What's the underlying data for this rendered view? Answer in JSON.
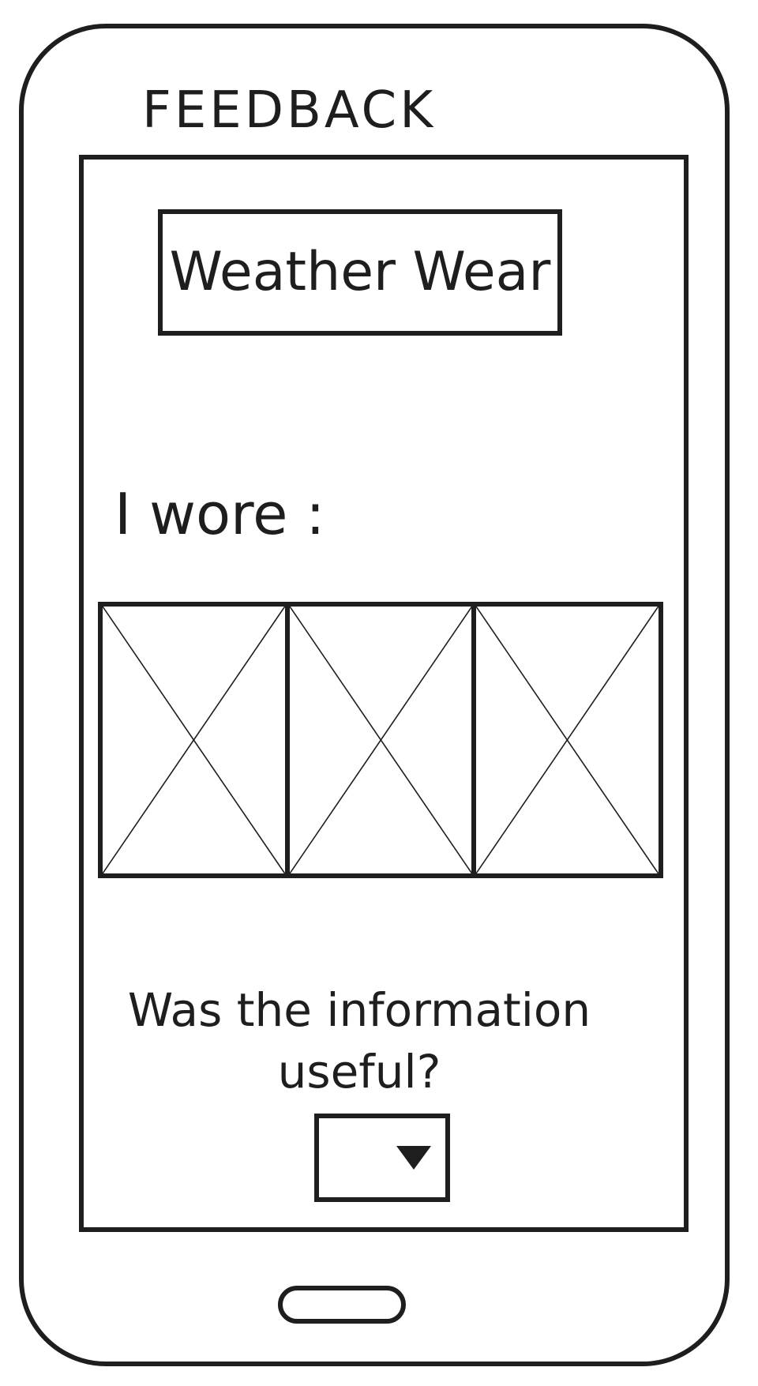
{
  "screen": {
    "title": "FEEDBACK"
  },
  "banner": {
    "app_name": "Weather Wear"
  },
  "outfit": {
    "label": "I wore :",
    "slots": [
      {
        "placeholder": "image-placeholder"
      },
      {
        "placeholder": "image-placeholder"
      },
      {
        "placeholder": "image-placeholder"
      }
    ]
  },
  "feedback": {
    "question": "Was the information useful?",
    "select_value": "",
    "select_icon": "chevron-down-icon"
  },
  "device": {
    "home_button_icon": "home-button"
  }
}
